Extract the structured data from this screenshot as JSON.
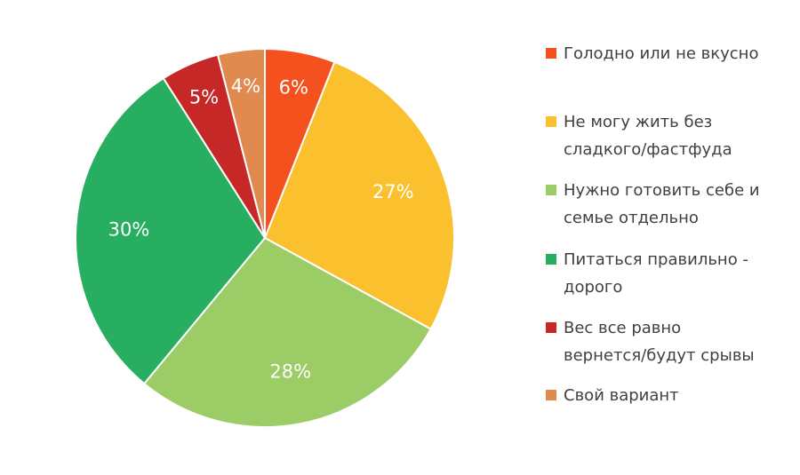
{
  "chart_data": {
    "type": "pie",
    "title": "",
    "legend_position": "right",
    "slices": [
      {
        "name": "Голодно или не вкусно",
        "value": 6,
        "label": "6%",
        "color": "#F4511E"
      },
      {
        "name": "Не могу жить без\nсладкого/фастфуда",
        "value": 27,
        "label": "27%",
        "color": "#FBC02D"
      },
      {
        "name": "Нужно готовить себе и\nсемье отдельно",
        "value": 28,
        "label": "28%",
        "color": "#9CCC65"
      },
      {
        "name": "Питаться правильно -\nдорого",
        "value": 30,
        "label": "30%",
        "color": "#27AE60"
      },
      {
        "name": "Вес все равно\nвернется/будут срывы",
        "value": 5,
        "label": "5%",
        "color": "#C62828"
      },
      {
        "name": "Свой вариант",
        "value": 4,
        "label": "4%",
        "color": "#E08A4F"
      }
    ]
  }
}
